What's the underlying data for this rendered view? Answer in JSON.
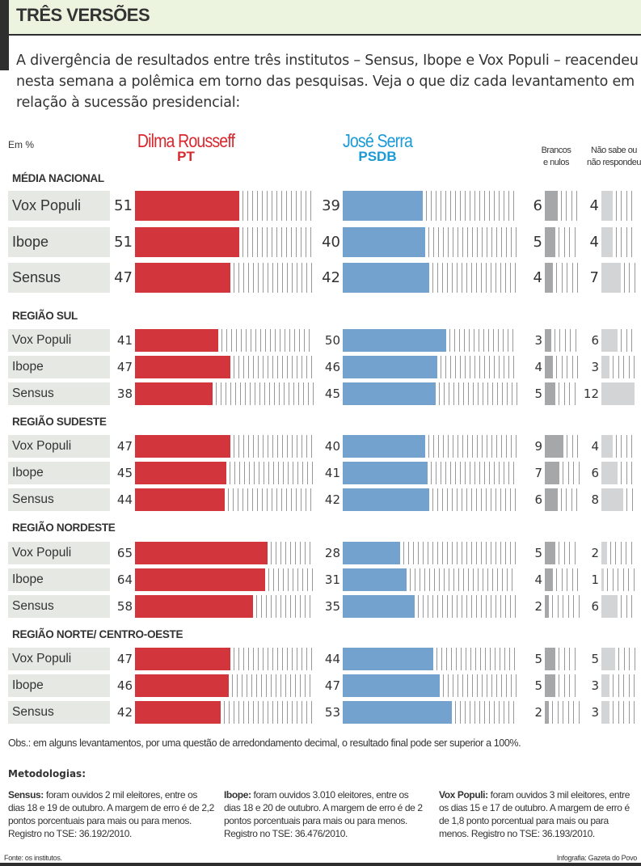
{
  "header": {
    "title": "TRÊS VERSÕES",
    "intro": "A divergência de resultados entre três institutos – Sensus, Ibope e Vox Populi – reacendeu nesta semana a polêmica em torno das pesquisas. Veja o que diz cada levantamento em relação à sucessão presidencial:"
  },
  "unit_label": "Em %",
  "columns": {
    "dilma": {
      "name": "Dilma Rousseff",
      "party": "PT",
      "color": "#d9272e",
      "bar_color": "#d2353b"
    },
    "serra": {
      "name": "José Serra",
      "party": "PSDB",
      "color": "#1a9ad6",
      "bar_color": "#74a2cf"
    },
    "brancos": {
      "line1": "Brancos",
      "line2": "e nulos",
      "bar_color": "#a6a7a9"
    },
    "naosabe": {
      "line1": "Não sabe ou",
      "line2": "não respondeu",
      "bar_color": "#d3d4d6"
    }
  },
  "chart_data": {
    "type": "bar",
    "title": "TRÊS VERSÕES",
    "unit": "%",
    "series_names": [
      "Dilma Rousseff (PT)",
      "José Serra (PSDB)",
      "Brancos e nulos",
      "Não sabe ou não respondeu"
    ],
    "sections": [
      {
        "title": "MÉDIA NACIONAL",
        "rows": [
          {
            "institute": "Vox Populi",
            "dilma": 51,
            "serra": 39,
            "brancos": 6,
            "naosabe": 4
          },
          {
            "institute": "Ibope",
            "dilma": 51,
            "serra": 40,
            "brancos": 5,
            "naosabe": 4
          },
          {
            "institute": "Sensus",
            "dilma": 47,
            "serra": 42,
            "brancos": 4,
            "naosabe": 7
          }
        ]
      },
      {
        "title": "REGIÃO SUL",
        "rows": [
          {
            "institute": "Vox Populi",
            "dilma": 41,
            "serra": 50,
            "brancos": 3,
            "naosabe": 6
          },
          {
            "institute": "Ibope",
            "dilma": 47,
            "serra": 46,
            "brancos": 4,
            "naosabe": 3
          },
          {
            "institute": "Sensus",
            "dilma": 38,
            "serra": 45,
            "brancos": 5,
            "naosabe": 12
          }
        ]
      },
      {
        "title": "REGIÃO SUDESTE",
        "rows": [
          {
            "institute": "Vox Populi",
            "dilma": 47,
            "serra": 40,
            "brancos": 9,
            "naosabe": 4
          },
          {
            "institute": "Ibope",
            "dilma": 45,
            "serra": 41,
            "brancos": 7,
            "naosabe": 6
          },
          {
            "institute": "Sensus",
            "dilma": 44,
            "serra": 42,
            "brancos": 6,
            "naosabe": 8
          }
        ]
      },
      {
        "title": "REGIÃO NORDESTE",
        "rows": [
          {
            "institute": "Vox Populi",
            "dilma": 65,
            "serra": 28,
            "brancos": 5,
            "naosabe": 2
          },
          {
            "institute": "Ibope",
            "dilma": 64,
            "serra": 31,
            "brancos": 4,
            "naosabe": 1
          },
          {
            "institute": "Sensus",
            "dilma": 58,
            "serra": 35,
            "brancos": 2,
            "naosabe": 6
          }
        ]
      },
      {
        "title": "REGIÃO NORTE/ CENTRO-OESTE",
        "rows": [
          {
            "institute": "Vox Populi",
            "dilma": 47,
            "serra": 44,
            "brancos": 5,
            "naosabe": 5
          },
          {
            "institute": "Ibope",
            "dilma": 46,
            "serra": 47,
            "brancos": 5,
            "naosabe": 3
          },
          {
            "institute": "Sensus",
            "dilma": 42,
            "serra": 53,
            "brancos": 2,
            "naosabe": 3
          }
        ]
      }
    ]
  },
  "notes": {
    "obs": "Obs.: em alguns levantamentos, por uma questão de arredondamento decimal, o resultado final pode ser superior a 100%.",
    "methodologies_title": "Metodologias:",
    "methodologies": [
      {
        "name": "Sensus:",
        "text": " foram ouvidos 2 mil eleitores, entre os dias 18 e 19 de outubro. A margem de erro é de 2,2 pontos porcentuais para mais ou para menos. Registro no TSE: 36.192/2010."
      },
      {
        "name": "Ibope:",
        "text": " foram ouvidos 3.010 eleitores, entre os dias 18 e 20 de outubro. A margem de erro é de 2 pontos porcentuais para mais ou para menos. Registro no TSE: 36.476/2010."
      },
      {
        "name": "Vox Populi:",
        "text": " foram ouvidos 3 mil eleitores, entre os dias 15 e 17 de outubro. A margem de erro é de 1,8 ponto porcentual para mais ou para menos. Registro no TSE: 36.193/2010."
      }
    ],
    "source": "Fonte: os institutos.",
    "credit": "Infografia: Gazeta do Povo"
  }
}
